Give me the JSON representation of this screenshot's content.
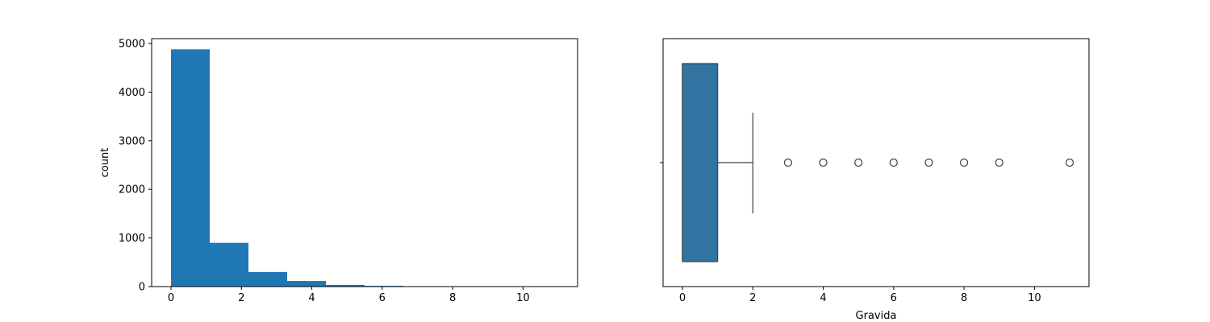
{
  "chart_data": [
    {
      "type": "bar",
      "subtype": "histogram",
      "ylabel": "count",
      "xlabel": "",
      "xlim": [
        -0.55,
        11.55
      ],
      "ylim": [
        0,
        5100
      ],
      "x_ticks": [
        0,
        2,
        4,
        6,
        8,
        10
      ],
      "y_ticks": [
        0,
        1000,
        2000,
        3000,
        4000,
        5000
      ],
      "bins": [
        {
          "x0": 0.0,
          "x1": 1.1,
          "value": 4880
        },
        {
          "x0": 1.1,
          "x1": 2.2,
          "value": 900
        },
        {
          "x0": 2.2,
          "x1": 3.3,
          "value": 300
        },
        {
          "x0": 3.3,
          "x1": 4.4,
          "value": 115
        },
        {
          "x0": 4.4,
          "x1": 5.5,
          "value": 35
        },
        {
          "x0": 5.5,
          "x1": 6.6,
          "value": 15
        },
        {
          "x0": 6.6,
          "x1": 7.7,
          "value": 5
        },
        {
          "x0": 7.7,
          "x1": 8.8,
          "value": 3
        },
        {
          "x0": 8.8,
          "x1": 9.9,
          "value": 1
        },
        {
          "x0": 9.9,
          "x1": 11.0,
          "value": 1
        }
      ],
      "color": "#1f77b4",
      "grid": false
    },
    {
      "type": "box",
      "orientation": "horizontal",
      "xlabel": "Gravida",
      "ylabel": "",
      "xlim": [
        -0.55,
        11.55
      ],
      "x_ticks": [
        0,
        2,
        4,
        6,
        8,
        10
      ],
      "box": {
        "q1": 0,
        "median": 0,
        "q3": 1,
        "whisker_low": 0,
        "whisker_high": 2
      },
      "outliers": [
        3,
        4,
        5,
        6,
        7,
        8,
        9,
        11
      ],
      "color": "#3274a1",
      "grid": false
    }
  ]
}
